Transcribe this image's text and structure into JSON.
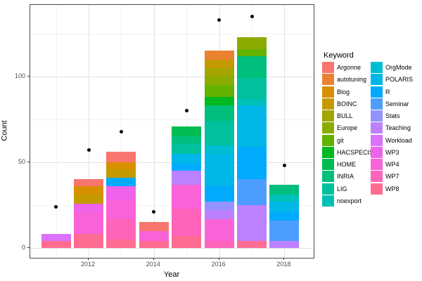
{
  "chart_data": {
    "type": "bar",
    "subtype": "stacked-bars-with-points",
    "title": "",
    "xlabel": "Year",
    "ylabel": "Count",
    "legend_title": "Keyword",
    "legend_position": "right",
    "grid": true,
    "x_ticks": [
      "2012",
      "2014",
      "2016",
      "2018"
    ],
    "y_ticks": [
      "0",
      "50",
      "100"
    ],
    "ylim": [
      0,
      142
    ],
    "point_color": "#000000",
    "keywords": [
      {
        "name": "Argonne",
        "color": "#F8766D"
      },
      {
        "name": "autotuning",
        "color": "#EA8331"
      },
      {
        "name": "Blog",
        "color": "#D89000"
      },
      {
        "name": "BOINC",
        "color": "#C59900"
      },
      {
        "name": "BULL",
        "color": "#A3A500"
      },
      {
        "name": "Europe",
        "color": "#8CAB00"
      },
      {
        "name": "git",
        "color": "#64B200"
      },
      {
        "name": "HACSPECIS",
        "color": "#00B81F"
      },
      {
        "name": "HOME",
        "color": "#00BC51"
      },
      {
        "name": "INRIA",
        "color": "#00BE7C"
      },
      {
        "name": "LIG",
        "color": "#00C09E"
      },
      {
        "name": "noexport",
        "color": "#00C1B8"
      },
      {
        "name": "OrgMode",
        "color": "#00BDD2"
      },
      {
        "name": "POLARIS",
        "color": "#00B7E7"
      },
      {
        "name": "R",
        "color": "#00AAFC"
      },
      {
        "name": "Seminar",
        "color": "#4D9DFF"
      },
      {
        "name": "Stats",
        "color": "#9392FF"
      },
      {
        "name": "Teaching",
        "color": "#BC81FF"
      },
      {
        "name": "Workload",
        "color": "#DB72FB"
      },
      {
        "name": "WP3",
        "color": "#EE63E9"
      },
      {
        "name": "WP4",
        "color": "#FA62D8"
      },
      {
        "name": "WP7",
        "color": "#FF63BA"
      },
      {
        "name": "WP8",
        "color": "#FF6C92"
      }
    ],
    "bars": [
      {
        "year": 2011,
        "total": 8,
        "point": 24,
        "segments": [
          {
            "keyword": "WP8",
            "value": 4
          },
          {
            "keyword": "Workload",
            "value": 4
          }
        ]
      },
      {
        "year": 2012,
        "total": 40,
        "point": 57,
        "segments": [
          {
            "keyword": "WP8",
            "value": 8
          },
          {
            "keyword": "WP4",
            "value": 13
          },
          {
            "keyword": "WP3",
            "value": 5
          },
          {
            "keyword": "BOINC",
            "value": 5
          },
          {
            "keyword": "Blog",
            "value": 5
          },
          {
            "keyword": "Argonne",
            "value": 4
          }
        ]
      },
      {
        "year": 2013,
        "total": 56,
        "point": 68,
        "segments": [
          {
            "keyword": "WP8",
            "value": 5
          },
          {
            "keyword": "WP7",
            "value": 12
          },
          {
            "keyword": "WP4",
            "value": 11
          },
          {
            "keyword": "WP3",
            "value": 8
          },
          {
            "keyword": "R",
            "value": 5
          },
          {
            "keyword": "BOINC",
            "value": 5
          },
          {
            "keyword": "Blog",
            "value": 4
          },
          {
            "keyword": "Argonne",
            "value": 6
          }
        ]
      },
      {
        "year": 2014,
        "total": 15,
        "point": 21,
        "segments": [
          {
            "keyword": "WP8",
            "value": 4
          },
          {
            "keyword": "WP4",
            "value": 6
          },
          {
            "keyword": "Argonne",
            "value": 5
          }
        ]
      },
      {
        "year": 2015,
        "total": 71,
        "point": 80,
        "segments": [
          {
            "keyword": "WP8",
            "value": 7
          },
          {
            "keyword": "WP7",
            "value": 16
          },
          {
            "keyword": "WP4",
            "value": 14
          },
          {
            "keyword": "Teaching",
            "value": 8
          },
          {
            "keyword": "R",
            "value": 4
          },
          {
            "keyword": "POLARIS",
            "value": 6
          },
          {
            "keyword": "LIG",
            "value": 6
          },
          {
            "keyword": "INRIA",
            "value": 4
          },
          {
            "keyword": "HOME",
            "value": 6
          }
        ]
      },
      {
        "year": 2016,
        "total": 115,
        "point": 133,
        "segments": [
          {
            "keyword": "WP7",
            "value": 4
          },
          {
            "keyword": "WP4",
            "value": 13
          },
          {
            "keyword": "Teaching",
            "value": 5
          },
          {
            "keyword": "Stats",
            "value": 5
          },
          {
            "keyword": "R",
            "value": 9
          },
          {
            "keyword": "POLARIS",
            "value": 19
          },
          {
            "keyword": "OrgMode",
            "value": 5
          },
          {
            "keyword": "LIG",
            "value": 14
          },
          {
            "keyword": "INRIA",
            "value": 9
          },
          {
            "keyword": "HACSPECIS",
            "value": 5
          },
          {
            "keyword": "git",
            "value": 7
          },
          {
            "keyword": "Europe",
            "value": 5
          },
          {
            "keyword": "BULL",
            "value": 5
          },
          {
            "keyword": "BOINC",
            "value": 5
          },
          {
            "keyword": "autotuning",
            "value": 5
          }
        ]
      },
      {
        "year": 2017,
        "total": 123,
        "point": 135,
        "segments": [
          {
            "keyword": "WP8",
            "value": 4
          },
          {
            "keyword": "Teaching",
            "value": 21
          },
          {
            "keyword": "Seminar",
            "value": 15
          },
          {
            "keyword": "R",
            "value": 19
          },
          {
            "keyword": "POLARIS",
            "value": 24
          },
          {
            "keyword": "noexport",
            "value": 4
          },
          {
            "keyword": "LIG",
            "value": 12
          },
          {
            "keyword": "INRIA",
            "value": 13
          },
          {
            "keyword": "git",
            "value": 4
          },
          {
            "keyword": "Europe",
            "value": 7
          }
        ]
      },
      {
        "year": 2018,
        "total": 37,
        "point": 48,
        "segments": [
          {
            "keyword": "Teaching",
            "value": 4
          },
          {
            "keyword": "Seminar",
            "value": 12
          },
          {
            "keyword": "R",
            "value": 5
          },
          {
            "keyword": "POLARIS",
            "value": 6
          },
          {
            "keyword": "noexport",
            "value": 4
          },
          {
            "keyword": "INRIA",
            "value": 6
          }
        ]
      }
    ]
  }
}
